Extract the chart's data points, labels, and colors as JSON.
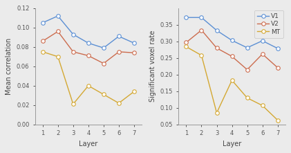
{
  "layers": [
    1,
    2,
    3,
    4,
    5,
    6,
    7
  ],
  "left_ylabel": "Mean correlation",
  "right_ylabel": "Significant voxel rate",
  "xlabel": "Layer",
  "V1_left": [
    0.105,
    0.112,
    0.093,
    0.084,
    0.079,
    0.091,
    0.084
  ],
  "V2_left": [
    0.086,
    0.096,
    0.075,
    0.071,
    0.063,
    0.075,
    0.074
  ],
  "MT_left": [
    0.075,
    0.07,
    0.021,
    0.04,
    0.031,
    0.022,
    0.034
  ],
  "V1_right": [
    0.372,
    0.372,
    0.333,
    0.303,
    0.281,
    0.302,
    0.279
  ],
  "V2_right": [
    0.297,
    0.334,
    0.28,
    0.255,
    0.215,
    0.262,
    0.221
  ],
  "MT_right": [
    0.284,
    0.258,
    0.085,
    0.183,
    0.13,
    0.107,
    0.063
  ],
  "color_V1": "#5b8fd4",
  "color_V2": "#cc6c4e",
  "color_MT": "#d4a832",
  "bg_color": "#ebebeb",
  "ylim_left": [
    0,
    0.12
  ],
  "ylim_right": [
    0.05,
    0.4
  ],
  "yticks_left": [
    0,
    0.02,
    0.04,
    0.06,
    0.08,
    0.1,
    0.12
  ],
  "yticks_right": [
    0.05,
    0.1,
    0.15,
    0.2,
    0.25,
    0.3,
    0.35
  ],
  "legend_labels": [
    "V1",
    "V2",
    "MT"
  ],
  "marker": "o",
  "markersize": 4,
  "linewidth": 1.0,
  "tick_fontsize": 6,
  "label_fontsize": 7,
  "legend_fontsize": 6.5
}
